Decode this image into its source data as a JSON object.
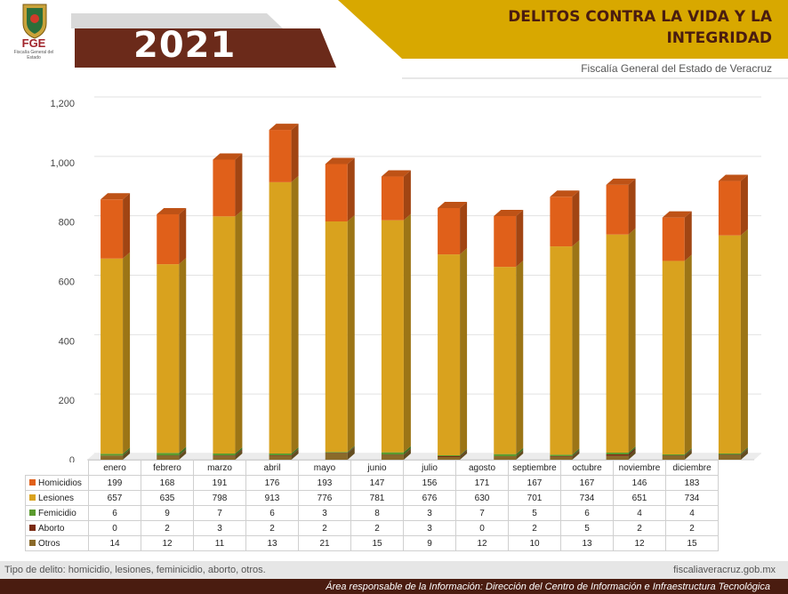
{
  "header": {
    "logo_abbr": "FGE",
    "logo_sub": "Fiscalía General del Estado",
    "year": "2021",
    "title": "DELITOS CONTRA LA VIDA Y LA INTEGRIDAD",
    "subtitle": "Fiscalía General del Estado de Veracruz"
  },
  "colors": {
    "homicidios": "#e0601a",
    "lesiones": "#d9a21e",
    "feminicidio": "#5a9a2e",
    "aborto": "#7a2a12",
    "otros": "#8a6a2a",
    "header_gold": "#d8a800",
    "header_brown": "#6b2a1a"
  },
  "chart_data": {
    "type": "bar",
    "stacked": true,
    "categories": [
      "enero",
      "febrero",
      "marzo",
      "abril",
      "mayo",
      "junio",
      "julio",
      "agosto",
      "septiembre",
      "octubre",
      "noviembre",
      "diciembre"
    ],
    "series": [
      {
        "name": "Homicidios",
        "values": [
          199,
          168,
          191,
          176,
          193,
          147,
          156,
          171,
          167,
          167,
          146,
          183
        ]
      },
      {
        "name": "Lesiones",
        "values": [
          657,
          635,
          798,
          913,
          776,
          781,
          676,
          630,
          701,
          734,
          651,
          734
        ]
      },
      {
        "name": "Femicidio",
        "values": [
          6,
          9,
          7,
          6,
          3,
          8,
          3,
          7,
          5,
          6,
          4,
          4
        ]
      },
      {
        "name": "Aborto",
        "values": [
          0,
          2,
          3,
          2,
          2,
          2,
          3,
          0,
          2,
          5,
          2,
          2
        ]
      },
      {
        "name": "Otros",
        "values": [
          14,
          12,
          11,
          13,
          21,
          15,
          9,
          12,
          10,
          13,
          12,
          15
        ]
      }
    ],
    "stack_order": [
      "Otros",
      "Aborto",
      "Femicidio",
      "Lesiones",
      "Homicidios"
    ],
    "ylim": [
      0,
      1200
    ],
    "yticks": [
      0,
      200,
      400,
      600,
      800,
      1000,
      1200
    ],
    "ytick_labels": [
      "0",
      "200",
      "400",
      "600",
      "800",
      "1,000",
      "1,200"
    ],
    "grid": true,
    "legend": "data-table"
  },
  "footer": {
    "note": "Tipo de delito: homicidio, lesiones, feminicidio, aborto, otros.",
    "website": "fiscaliaveracruz.gob.mx",
    "responsible": "Área responsable de la Información: Dirección del Centro de Información e Infraestructura Tecnológica"
  }
}
